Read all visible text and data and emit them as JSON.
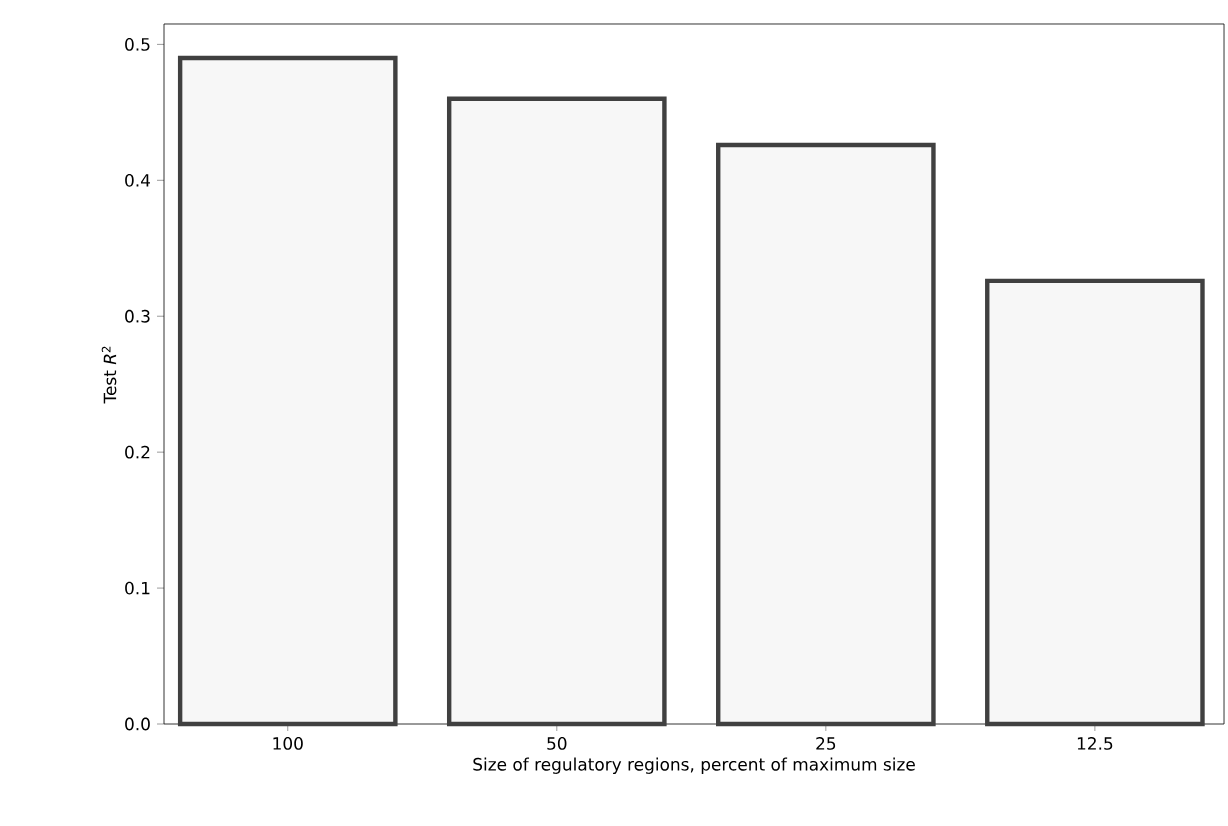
{
  "chart_data": {
    "type": "bar",
    "xlabel": "Size of regulatory regions, percent of maximum size",
    "ylabel": "Test *R*$^{2}$",
    "categories": [
      "100",
      "50",
      "25",
      "12.5"
    ],
    "values": [
      0.49,
      0.46,
      0.426,
      0.326
    ],
    "color": "#404040",
    "ylim": [
      0,
      0.515
    ],
    "yticks": [
      {
        "value": 0,
        "label": "0.0"
      },
      {
        "value": 0.1,
        "label": "0.1"
      },
      {
        "value": 0.2,
        "label": "0.2"
      },
      {
        "value": 0.3,
        "label": "0.3"
      },
      {
        "value": 0.4,
        "label": "0.4"
      },
      {
        "value": 0.5,
        "label": "0.5"
      }
    ]
  }
}
